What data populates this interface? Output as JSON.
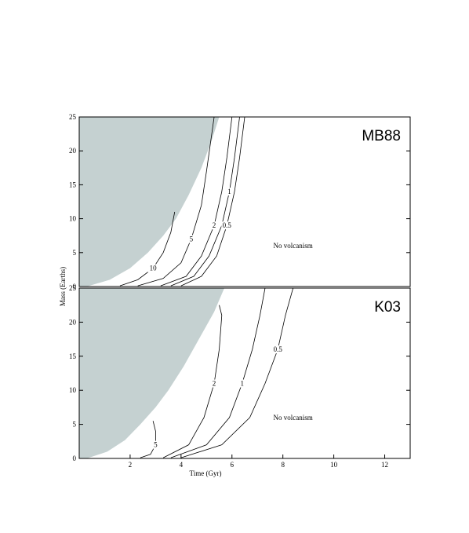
{
  "chart_data": [
    {
      "type": "contour",
      "panel_label": "MB88",
      "annotation": "No volcanism",
      "annotation_at": [
        8.4,
        6
      ],
      "y_label": "Mass (Earths)",
      "xlim": [
        0,
        13
      ],
      "ylim": [
        0,
        25
      ],
      "yticks": [
        0,
        5,
        10,
        15,
        20,
        25
      ],
      "region": {
        "color": "#c5d1d1",
        "x": [
          0.3,
          1.2,
          2.0,
          2.7,
          3.3,
          3.8,
          4.3,
          4.8,
          5.2,
          5.5
        ],
        "y": [
          0,
          1,
          2.7,
          5,
          7.5,
          10,
          13.5,
          17.5,
          21.5,
          25
        ]
      },
      "contours": [
        {
          "level": 10,
          "x": [
            1.6,
            2.3,
            2.9,
            3.3,
            3.6,
            3.75
          ],
          "y": [
            0.1,
            1,
            2.7,
            5,
            8,
            11
          ]
        },
        {
          "level": 5,
          "x": [
            2.3,
            3.3,
            4.0,
            4.4,
            4.8,
            5.0,
            5.3
          ],
          "y": [
            0.1,
            1.2,
            3.5,
            7,
            12,
            17,
            25
          ]
        },
        {
          "level": 2,
          "x": [
            3.2,
            4.2,
            4.8,
            5.3,
            5.6,
            5.8,
            6.0
          ],
          "y": [
            0.1,
            1.5,
            4.5,
            9,
            14,
            19,
            25
          ]
        },
        {
          "level": 1,
          "x": [
            3.6,
            4.5,
            5.1,
            5.6,
            5.9,
            6.1,
            6.3
          ],
          "y": [
            0.1,
            1.5,
            4.5,
            9,
            14,
            19,
            25
          ]
        },
        {
          "level": 0.5,
          "x": [
            4.0,
            4.8,
            5.4,
            5.8,
            6.1,
            6.3,
            6.5
          ],
          "y": [
            0.1,
            1.5,
            4.5,
            9,
            14,
            19,
            25
          ]
        }
      ]
    },
    {
      "type": "contour",
      "panel_label": "K03",
      "annotation": "No volcanism",
      "annotation_at": [
        8.4,
        6
      ],
      "x_label": "Time (Gyr)",
      "xlim": [
        0,
        13
      ],
      "ylim": [
        0,
        25
      ],
      "xticks": [
        2,
        4,
        6,
        8,
        10,
        12
      ],
      "yticks": [
        0,
        5,
        10,
        15,
        20,
        25
      ],
      "region": {
        "color": "#c5d1d1",
        "x": [
          0.3,
          1.1,
          1.8,
          2.4,
          3.0,
          3.5,
          4.1,
          4.7,
          5.3,
          5.7
        ],
        "y": [
          0,
          1,
          2.7,
          5,
          7.5,
          10,
          13.5,
          17.5,
          21.5,
          25
        ]
      },
      "contours": [
        {
          "level": 5,
          "x": [
            2.4,
            2.8,
            3.0,
            3.0,
            2.9
          ],
          "y": [
            0.1,
            0.6,
            2,
            4,
            5.5
          ]
        },
        {
          "level": 2,
          "x": [
            3.3,
            4.3,
            4.9,
            5.3,
            5.5,
            5.6,
            5.5
          ],
          "y": [
            0.1,
            2,
            6,
            11,
            16,
            21,
            22.5
          ]
        },
        {
          "level": 1,
          "x": [
            3.6,
            5.0,
            5.9,
            6.4,
            6.8,
            7.1,
            7.3
          ],
          "y": [
            0.1,
            2,
            6,
            11,
            16,
            21,
            25
          ]
        },
        {
          "level": 0.5,
          "x": [
            4.0,
            5.6,
            6.7,
            7.3,
            7.8,
            8.1,
            8.4
          ],
          "y": [
            0.1,
            2,
            6,
            11,
            16,
            21,
            25
          ]
        }
      ]
    }
  ]
}
